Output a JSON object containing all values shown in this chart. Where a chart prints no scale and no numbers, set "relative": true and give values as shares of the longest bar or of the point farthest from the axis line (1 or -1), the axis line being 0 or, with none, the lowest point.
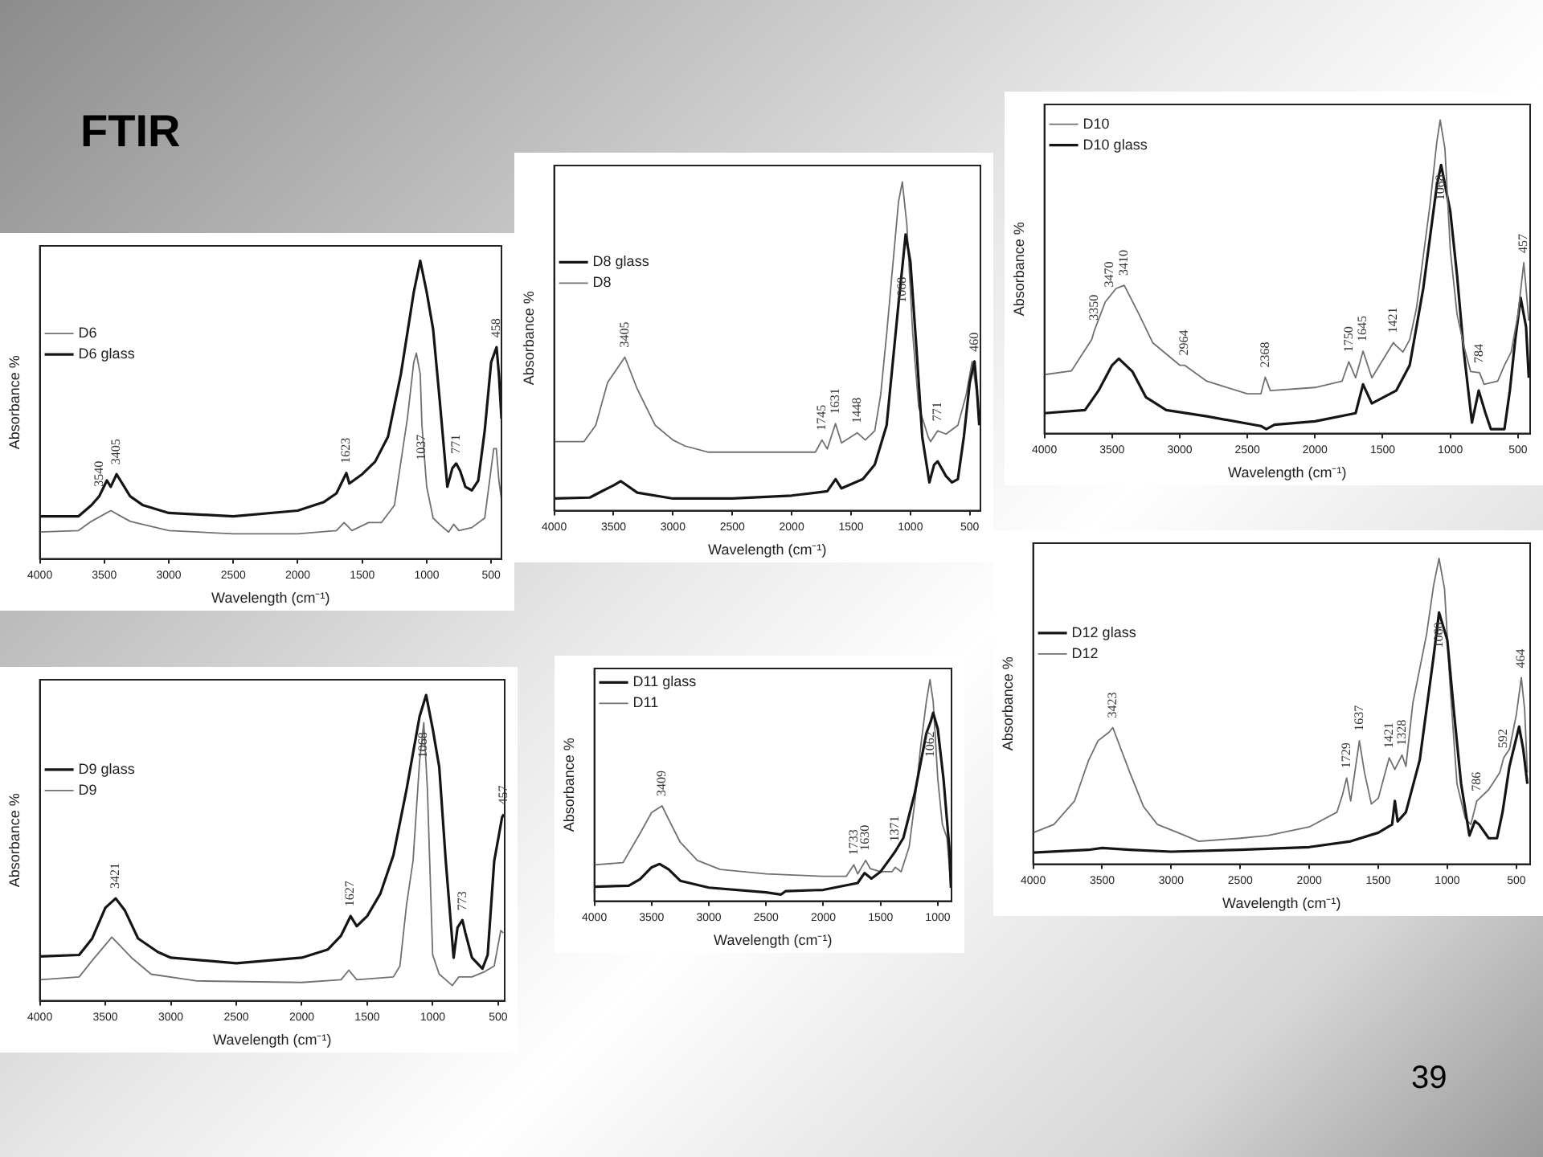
{
  "chart_data": [
    {
      "type": "other",
      "title": "FTIR",
      "annotations": [
        "39"
      ]
    },
    {
      "type": "line",
      "relative": true,
      "xlabel": "Wavelength (cm⁻¹)",
      "ylabel": "Absorbance %",
      "xlim": [
        4000,
        420
      ],
      "xticks": [
        4000,
        3500,
        3000,
        2500,
        2000,
        1500,
        1000,
        500
      ],
      "legend": "left",
      "series": [
        {
          "name": "D6",
          "color": "#707070",
          "x": [
            4000,
            3700,
            3600,
            3450,
            3300,
            3000,
            2500,
            2000,
            1700,
            1640,
            1580,
            1450,
            1350,
            1250,
            1200,
            1150,
            1100,
            1080,
            1050,
            1037,
            1000,
            950,
            900,
            830,
            790,
            750,
            650,
            550,
            480,
            460,
            440,
            420
          ],
          "values": [
            0.09,
            0.095,
            0.126,
            0.162,
            0.126,
            0.095,
            0.084,
            0.084,
            0.095,
            0.122,
            0.095,
            0.122,
            0.122,
            0.18,
            0.326,
            0.47,
            0.66,
            0.69,
            0.62,
            0.45,
            0.242,
            0.137,
            0.116,
            0.09,
            0.116,
            0.095,
            0.105,
            0.137,
            0.37,
            0.37,
            0.263,
            0.2
          ]
        },
        {
          "name": "D6 glass",
          "color": "#151515",
          "x": [
            4000,
            3700,
            3600,
            3540,
            3480,
            3450,
            3405,
            3300,
            3200,
            3000,
            2500,
            2000,
            1800,
            1700,
            1623,
            1600,
            1500,
            1400,
            1300,
            1200,
            1100,
            1050,
            1000,
            950,
            900,
            840,
            800,
            771,
            740,
            700,
            650,
            600,
            550,
            500,
            458,
            440,
            420
          ],
          "values": [
            0.143,
            0.143,
            0.18,
            0.21,
            0.263,
            0.242,
            0.284,
            0.21,
            0.18,
            0.154,
            0.143,
            0.162,
            0.19,
            0.22,
            0.288,
            0.253,
            0.284,
            0.326,
            0.41,
            0.62,
            0.895,
            1.0,
            0.895,
            0.77,
            0.537,
            0.242,
            0.305,
            0.32,
            0.295,
            0.242,
            0.23,
            0.263,
            0.43,
            0.66,
            0.71,
            0.62,
            0.47
          ]
        }
      ],
      "annotations": [
        {
          "text": "3540",
          "x": 3540,
          "y": 0.21
        },
        {
          "text": "3405",
          "x": 3405,
          "y": 0.284
        },
        {
          "text": "1623",
          "x": 1623,
          "y": 0.288
        },
        {
          "text": "1037",
          "x": 1037,
          "y": 0.45
        },
        {
          "text": "771",
          "x": 771,
          "y": 0.32
        },
        {
          "text": "458",
          "x": 458,
          "y": 0.71
        }
      ]
    },
    {
      "type": "line",
      "relative": true,
      "xlabel": "Wavelength (cm⁻¹)",
      "ylabel": "Absorbance %",
      "xlim": [
        4000,
        410
      ],
      "xticks": [
        4000,
        3500,
        3000,
        2500,
        2000,
        1500,
        1000,
        500
      ],
      "legend": "left",
      "series": [
        {
          "name": "D8 glass",
          "color": "#151515",
          "x": [
            4000,
            3700,
            3600,
            3500,
            3440,
            3300,
            3000,
            2500,
            2000,
            1700,
            1630,
            1580,
            1400,
            1300,
            1200,
            1100,
            1068,
            1040,
            1000,
            950,
            900,
            840,
            800,
            770,
            700,
            650,
            600,
            550,
            500,
            460,
            440,
            420
          ],
          "values": [
            0.037,
            0.04,
            0.059,
            0.077,
            0.09,
            0.055,
            0.037,
            0.037,
            0.046,
            0.059,
            0.096,
            0.068,
            0.096,
            0.14,
            0.26,
            0.63,
            0.74,
            0.84,
            0.757,
            0.5,
            0.224,
            0.086,
            0.14,
            0.15,
            0.105,
            0.086,
            0.096,
            0.224,
            0.39,
            0.454,
            0.37,
            0.26
          ]
        },
        {
          "name": "D8",
          "color": "#707070",
          "x": [
            4000,
            3750,
            3650,
            3550,
            3405,
            3300,
            3150,
            3000,
            2900,
            2700,
            2000,
            1800,
            1745,
            1700,
            1631,
            1580,
            1448,
            1380,
            1300,
            1250,
            1200,
            1150,
            1100,
            1068,
            1030,
            980,
            930,
            880,
            850,
            830,
            771,
            700,
            600,
            530,
            480,
            440,
            420
          ],
          "values": [
            0.21,
            0.21,
            0.26,
            0.39,
            0.467,
            0.37,
            0.26,
            0.215,
            0.197,
            0.178,
            0.178,
            0.178,
            0.215,
            0.188,
            0.265,
            0.206,
            0.237,
            0.215,
            0.243,
            0.353,
            0.537,
            0.74,
            0.94,
            1.0,
            0.87,
            0.537,
            0.316,
            0.26,
            0.224,
            0.21,
            0.243,
            0.233,
            0.26,
            0.353,
            0.454,
            0.353,
            0.26
          ]
        }
      ],
      "annotations": [
        {
          "text": "3405",
          "x": 3405,
          "y": 0.467
        },
        {
          "text": "1745",
          "x": 1745,
          "y": 0.215
        },
        {
          "text": "1631",
          "x": 1631,
          "y": 0.265
        },
        {
          "text": "1448",
          "x": 1448,
          "y": 0.237
        },
        {
          "text": "1068",
          "x": 1068,
          "y": 0.74
        },
        {
          "text": "771",
          "x": 771,
          "y": 0.243
        },
        {
          "text": "460",
          "x": 460,
          "y": 0.454
        }
      ]
    },
    {
      "type": "line",
      "relative": true,
      "xlabel": "Wavelength (cm⁻¹)",
      "ylabel": "Absorbance %",
      "xlim": [
        4000,
        410
      ],
      "xticks": [
        4000,
        3500,
        3000,
        2500,
        2000,
        1500,
        1000,
        500
      ],
      "legend": "top left",
      "series": [
        {
          "name": "D10",
          "color": "#707070",
          "x": [
            4000,
            3800,
            3650,
            3630,
            3550,
            3520,
            3470,
            3410,
            3300,
            3200,
            3000,
            2964,
            2800,
            2500,
            2400,
            2368,
            2330,
            2000,
            1800,
            1750,
            1700,
            1645,
            1580,
            1421,
            1400,
            1350,
            1300,
            1250,
            1200,
            1150,
            1100,
            1075,
            1040,
            1000,
            950,
            900,
            850,
            784,
            750,
            650,
            600,
            550,
            500,
            457,
            440,
            420
          ],
          "values": [
            0.188,
            0.2,
            0.3,
            0.33,
            0.42,
            0.436,
            0.463,
            0.473,
            0.38,
            0.29,
            0.218,
            0.218,
            0.167,
            0.127,
            0.127,
            0.18,
            0.137,
            0.147,
            0.167,
            0.229,
            0.178,
            0.263,
            0.178,
            0.29,
            0.28,
            0.26,
            0.3,
            0.4,
            0.565,
            0.73,
            0.93,
            1.0,
            0.91,
            0.585,
            0.38,
            0.28,
            0.198,
            0.194,
            0.157,
            0.167,
            0.218,
            0.26,
            0.38,
            0.545,
            0.463,
            0.36
          ]
        },
        {
          "name": "D10 glass",
          "color": "#151515",
          "x": [
            4000,
            3700,
            3600,
            3500,
            3450,
            3350,
            3250,
            3100,
            2800,
            2400,
            2360,
            2300,
            2000,
            1700,
            1645,
            1580,
            1400,
            1300,
            1200,
            1100,
            1068,
            1000,
            950,
            900,
            840,
            790,
            740,
            700,
            600,
            560,
            520,
            480,
            440,
            420
          ],
          "values": [
            0.065,
            0.075,
            0.137,
            0.218,
            0.239,
            0.198,
            0.116,
            0.075,
            0.055,
            0.024,
            0.014,
            0.028,
            0.039,
            0.065,
            0.157,
            0.096,
            0.137,
            0.218,
            0.463,
            0.79,
            0.857,
            0.708,
            0.504,
            0.26,
            0.035,
            0.137,
            0.065,
            0.014,
            0.014,
            0.137,
            0.3,
            0.433,
            0.34,
            0.178
          ]
        }
      ],
      "annotations": [
        {
          "text": "3350",
          "x": 3630,
          "y": 0.33
        },
        {
          "text": "3470",
          "x": 3520,
          "y": 0.436
        },
        {
          "text": "3410",
          "x": 3410,
          "y": 0.473
        },
        {
          "text": "2964",
          "x": 2964,
          "y": 0.218
        },
        {
          "text": "2368",
          "x": 2368,
          "y": 0.18
        },
        {
          "text": "1750",
          "x": 1750,
          "y": 0.229
        },
        {
          "text": "1645",
          "x": 1645,
          "y": 0.263
        },
        {
          "text": "1421",
          "x": 1421,
          "y": 0.29
        },
        {
          "text": "1068",
          "x": 1068,
          "y": 0.857
        },
        {
          "text": "784",
          "x": 784,
          "y": 0.194
        },
        {
          "text": "457",
          "x": 457,
          "y": 0.545
        }
      ]
    },
    {
      "type": "line",
      "relative": true,
      "xlabel": "Wavelength (cm⁻¹)",
      "ylabel": "Absorbance %",
      "xlim": [
        4000,
        450
      ],
      "xticks": [
        4000,
        3500,
        3000,
        2500,
        2000,
        1500,
        1000,
        500
      ],
      "legend": "left",
      "series": [
        {
          "name": "D9 glass",
          "color": "#151515",
          "x": [
            4000,
            3700,
            3600,
            3500,
            3421,
            3350,
            3250,
            3100,
            3000,
            2500,
            2000,
            1800,
            1700,
            1627,
            1580,
            1500,
            1400,
            1300,
            1200,
            1100,
            1050,
            1000,
            950,
            900,
            840,
            810,
            773,
            750,
            700,
            620,
            580,
            530,
            470,
            457
          ],
          "values": [
            0.145,
            0.15,
            0.204,
            0.304,
            0.335,
            0.295,
            0.204,
            0.16,
            0.141,
            0.123,
            0.141,
            0.168,
            0.213,
            0.277,
            0.244,
            0.277,
            0.35,
            0.476,
            0.69,
            0.93,
            1.0,
            0.89,
            0.765,
            0.457,
            0.141,
            0.24,
            0.264,
            0.222,
            0.141,
            0.105,
            0.15,
            0.457,
            0.6,
            0.61
          ]
        },
        {
          "name": "D9",
          "color": "#707070",
          "x": [
            4000,
            3700,
            3600,
            3450,
            3300,
            3150,
            2800,
            2000,
            1700,
            1640,
            1580,
            1300,
            1250,
            1200,
            1150,
            1100,
            1068,
            1040,
            1000,
            950,
            900,
            850,
            800,
            700,
            600,
            530,
            480,
            460
          ],
          "values": [
            0.069,
            0.078,
            0.132,
            0.208,
            0.141,
            0.087,
            0.065,
            0.06,
            0.069,
            0.1,
            0.069,
            0.078,
            0.114,
            0.313,
            0.457,
            0.783,
            0.91,
            0.69,
            0.15,
            0.087,
            0.069,
            0.05,
            0.078,
            0.078,
            0.096,
            0.114,
            0.23,
            0.222
          ]
        }
      ],
      "annotations": [
        {
          "text": "3421",
          "x": 3421,
          "y": 0.335
        },
        {
          "text": "1627",
          "x": 1627,
          "y": 0.277
        },
        {
          "text": "1068",
          "x": 1068,
          "y": 0.91
        },
        {
          "text": "773",
          "x": 773,
          "y": 0.264
        },
        {
          "text": "457",
          "x": 457,
          "y": 0.61
        }
      ]
    },
    {
      "type": "line",
      "relative": true,
      "xlabel": "Wavelength (cm⁻¹)",
      "ylabel": "Absorbance %",
      "xlim": [
        4000,
        880
      ],
      "xticks": [
        4000,
        3500,
        3000,
        2500,
        2000,
        1500,
        1000
      ],
      "legend": "top left",
      "series": [
        {
          "name": "D11 glass",
          "color": "#151515",
          "x": [
            4000,
            3700,
            3600,
            3500,
            3430,
            3350,
            3250,
            3000,
            2500,
            2370,
            2330,
            2000,
            1700,
            1640,
            1580,
            1500,
            1400,
            1371,
            1300,
            1200,
            1100,
            1062,
            1040,
            1000,
            950,
            900,
            885
          ],
          "values": [
            0.065,
            0.07,
            0.1,
            0.153,
            0.168,
            0.143,
            0.092,
            0.061,
            0.04,
            0.03,
            0.045,
            0.051,
            0.082,
            0.127,
            0.102,
            0.133,
            0.204,
            0.225,
            0.286,
            0.49,
            0.757,
            0.81,
            0.85,
            0.777,
            0.552,
            0.245,
            0.06
          ]
        },
        {
          "name": "D11",
          "color": "#707070",
          "x": [
            4000,
            3750,
            3600,
            3500,
            3409,
            3350,
            3250,
            3100,
            2900,
            2500,
            2000,
            1800,
            1733,
            1700,
            1630,
            1590,
            1500,
            1400,
            1371,
            1320,
            1250,
            1200,
            1150,
            1100,
            1068,
            1040,
            1000,
            960,
            920,
            885
          ],
          "values": [
            0.164,
            0.174,
            0.307,
            0.4,
            0.43,
            0.368,
            0.266,
            0.184,
            0.143,
            0.123,
            0.112,
            0.112,
            0.164,
            0.123,
            0.184,
            0.147,
            0.133,
            0.133,
            0.153,
            0.133,
            0.245,
            0.45,
            0.695,
            0.9,
            1.0,
            0.9,
            0.552,
            0.347,
            0.286,
            0.07
          ]
        }
      ],
      "annotations": [
        {
          "text": "3409",
          "x": 3409,
          "y": 0.43
        },
        {
          "text": "1733",
          "x": 1733,
          "y": 0.164
        },
        {
          "text": "1630",
          "x": 1630,
          "y": 0.184
        },
        {
          "text": "1371",
          "x": 1371,
          "y": 0.225
        },
        {
          "text": "1062",
          "x": 1062,
          "y": 0.81
        }
      ]
    },
    {
      "type": "line",
      "relative": true,
      "xlabel": "Wavelength (cm⁻¹)",
      "ylabel": "Absorbance %",
      "xlim": [
        4000,
        400
      ],
      "xticks": [
        4000,
        3500,
        3000,
        2500,
        2000,
        1500,
        1000,
        500
      ],
      "legend": "left",
      "series": [
        {
          "name": "D12 glass",
          "color": "#151515",
          "x": [
            4000,
            3600,
            3500,
            3300,
            3000,
            2500,
            2000,
            1700,
            1500,
            1400,
            1380,
            1360,
            1300,
            1200,
            1100,
            1060,
            1000,
            950,
            900,
            840,
            800,
            770,
            700,
            640,
            600,
            550,
            480,
            450,
            420
          ],
          "values": [
            0.038,
            0.047,
            0.053,
            0.047,
            0.041,
            0.047,
            0.056,
            0.075,
            0.103,
            0.13,
            0.207,
            0.14,
            0.17,
            0.34,
            0.677,
            0.823,
            0.733,
            0.489,
            0.263,
            0.094,
            0.141,
            0.13,
            0.085,
            0.085,
            0.17,
            0.32,
            0.45,
            0.376,
            0.263
          ]
        },
        {
          "name": "D12",
          "color": "#707070",
          "x": [
            4000,
            3850,
            3700,
            3600,
            3530,
            3450,
            3423,
            3300,
            3200,
            3100,
            2950,
            2800,
            2500,
            2300,
            2000,
            1800,
            1760,
            1729,
            1700,
            1637,
            1600,
            1550,
            1500,
            1421,
            1380,
            1328,
            1300,
            1250,
            1150,
            1100,
            1060,
            1020,
            980,
            930,
            870,
            830,
            786,
            700,
            620,
            592,
            550,
            500,
            464,
            440,
            420
          ],
          "values": [
            0.103,
            0.13,
            0.207,
            0.338,
            0.404,
            0.432,
            0.447,
            0.3,
            0.188,
            0.13,
            0.103,
            0.075,
            0.085,
            0.094,
            0.122,
            0.17,
            0.226,
            0.282,
            0.207,
            0.404,
            0.3,
            0.197,
            0.216,
            0.348,
            0.31,
            0.357,
            0.32,
            0.526,
            0.752,
            0.91,
            1.0,
            0.9,
            0.583,
            0.263,
            0.15,
            0.13,
            0.207,
            0.244,
            0.3,
            0.348,
            0.376,
            0.489,
            0.61,
            0.507,
            0.3
          ]
        }
      ],
      "annotations": [
        {
          "text": "3423",
          "x": 3423,
          "y": 0.447
        },
        {
          "text": "1729",
          "x": 1729,
          "y": 0.282
        },
        {
          "text": "1637",
          "x": 1637,
          "y": 0.404
        },
        {
          "text": "1421",
          "x": 1421,
          "y": 0.348
        },
        {
          "text": "1328",
          "x": 1328,
          "y": 0.357
        },
        {
          "text": "1060",
          "x": 1060,
          "y": 0.823
        },
        {
          "text": "786",
          "x": 786,
          "y": 0.207
        },
        {
          "text": "592",
          "x": 592,
          "y": 0.348
        },
        {
          "text": "464",
          "x": 464,
          "y": 0.61
        }
      ]
    }
  ]
}
